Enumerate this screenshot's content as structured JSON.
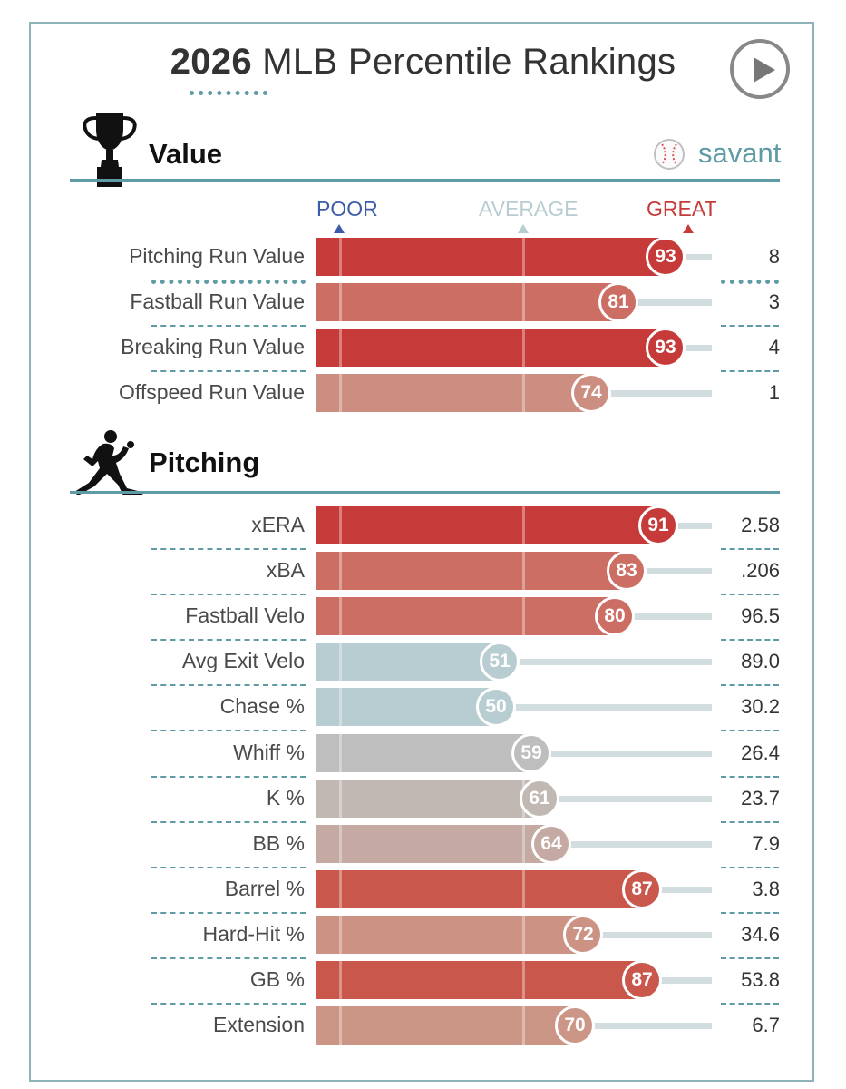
{
  "header": {
    "title_bold": "2026",
    "title_rest": " MLB Percentile Rankings"
  },
  "brand": {
    "name": "savant",
    "color": "#5e9ba5"
  },
  "icons": {
    "play": "play-button-icon",
    "value": "trophy-icon",
    "pitching": "pitcher-icon",
    "brand": "baseball-icon"
  },
  "scale": {
    "poor": "POOR",
    "average": "AVERAGE",
    "great": "GREAT",
    "poor_color": "#3d5ca8",
    "average_color": "#b8cdd1",
    "great_color": "#c73a3a"
  },
  "chart_data": [
    {
      "type": "bar",
      "orientation": "horizontal",
      "title": "Value",
      "xlim": [
        0,
        100
      ],
      "categories": [
        "Pitching Run Value",
        "Fastball Run Value",
        "Breaking Run Value",
        "Offspeed Run Value"
      ],
      "values": [
        93,
        81,
        93,
        74
      ],
      "stat_values": [
        "8",
        "3",
        "4",
        "1"
      ],
      "colors": [
        "#c73a3a",
        "#cc6e64",
        "#c73a3a",
        "#cc8e80"
      ]
    },
    {
      "type": "bar",
      "orientation": "horizontal",
      "title": "Pitching",
      "xlim": [
        0,
        100
      ],
      "categories": [
        "xERA",
        "xBA",
        "Fastball Velo",
        "Avg Exit Velo",
        "Chase %",
        "Whiff %",
        "K %",
        "BB %",
        "Barrel %",
        "Hard-Hit %",
        "GB %",
        "Extension"
      ],
      "values": [
        91,
        83,
        80,
        51,
        50,
        59,
        61,
        64,
        87,
        72,
        87,
        70
      ],
      "stat_values": [
        "2.58",
        ".206",
        "96.5",
        "89.0",
        "30.2",
        "26.4",
        "23.7",
        "7.9",
        "3.8",
        "34.6",
        "53.8",
        "6.7"
      ],
      "colors": [
        "#c73a3a",
        "#cc6e64",
        "#cc6e64",
        "#b8cdd1",
        "#b8cdd1",
        "#bebebe",
        "#c1b8b4",
        "#c5aaa3",
        "#c9574c",
        "#cc9283",
        "#c9574c",
        "#cc9687"
      ]
    }
  ]
}
